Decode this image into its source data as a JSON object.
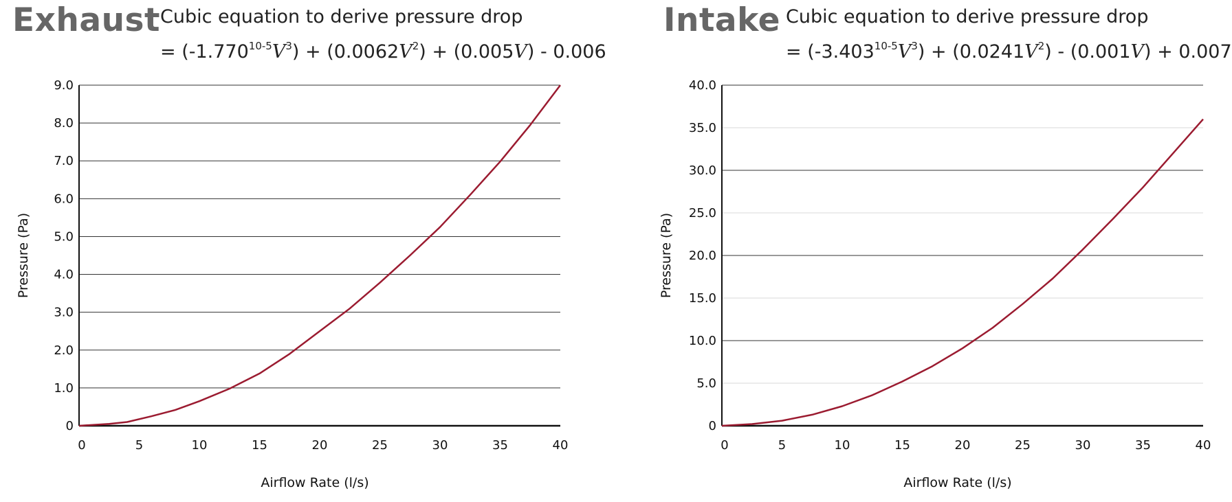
{
  "chart_data": [
    {
      "type": "line",
      "title": "Exhaust",
      "subtitle_line1": "Cubic equation to derive pressure drop",
      "equation": {
        "part1": "= (-1.770",
        "exp1": "10-5",
        "part2": "V",
        "exp2": "3",
        "part3": ") + (0.0062",
        "part4": "V",
        "exp3": "2",
        "part5": ") + (0.005",
        "part6": "V",
        "part7": ") - 0.006"
      },
      "xlabel": "Airflow Rate (l/s)",
      "ylabel": "Pressure (Pa)",
      "xlim": [
        0,
        40
      ],
      "ylim": [
        0,
        9
      ],
      "xticks": [
        0,
        5,
        10,
        15,
        20,
        25,
        30,
        35,
        40
      ],
      "yticks": [
        0,
        1,
        2,
        3,
        4,
        5,
        6,
        7,
        8,
        9
      ],
      "ytick_labels": [
        "0",
        "1.0",
        "2.0",
        "3.0",
        "4.0",
        "5.0",
        "6.0",
        "7.0",
        "8.0",
        "9.0"
      ],
      "x": [
        0,
        2.5,
        4,
        6,
        8,
        10,
        12.5,
        15,
        17.5,
        20,
        22.5,
        25,
        27.5,
        30,
        32.5,
        35,
        37.5,
        40
      ],
      "y": [
        0,
        0.05,
        0.1,
        0.25,
        0.42,
        0.65,
        0.98,
        1.38,
        1.9,
        2.5,
        3.1,
        3.78,
        4.5,
        5.25,
        6.1,
        6.98,
        7.95,
        9.0
      ],
      "line_color": "#9b1b30",
      "grid": "horizontal"
    },
    {
      "type": "line",
      "title": "Intake",
      "subtitle_line1": "Cubic equation to derive pressure drop",
      "equation": {
        "part1": "= (-3.403",
        "exp1": "10-5",
        "part2": "V",
        "exp2": "3",
        "part3": ") + (0.0241",
        "part4": "V",
        "exp3": "2",
        "part5": ") - (0.001",
        "part6": "V",
        "part7": ") + 0.007"
      },
      "xlabel": "Airflow Rate (l/s)",
      "ylabel": "Pressure (Pa)",
      "xlim": [
        0,
        40
      ],
      "ylim": [
        0,
        40
      ],
      "xticks": [
        0,
        5,
        10,
        15,
        20,
        25,
        30,
        35,
        40
      ],
      "yticks": [
        0,
        5,
        10,
        15,
        20,
        25,
        30,
        35,
        40
      ],
      "ytick_labels": [
        "0",
        "5.0",
        "10.0",
        "15.0",
        "20.0",
        "25.0",
        "30.0",
        "35.0",
        "40.0"
      ],
      "x": [
        0,
        2.5,
        5,
        7.5,
        10,
        12.5,
        15,
        17.5,
        20,
        22.5,
        25,
        27.5,
        30,
        32.5,
        35,
        37.5,
        40
      ],
      "y": [
        0,
        0.2,
        0.6,
        1.3,
        2.3,
        3.6,
        5.2,
        7.0,
        9.1,
        11.5,
        14.3,
        17.3,
        20.7,
        24.3,
        28.0,
        32.0,
        36.0
      ],
      "line_color": "#9b1b30",
      "grid": "horizontal"
    }
  ]
}
